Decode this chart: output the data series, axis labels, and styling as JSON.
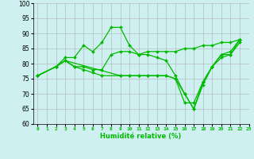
{
  "xlabel": "Humidité relative (%)",
  "background_color": "#cff0f0",
  "grid_color": "#b0b0b0",
  "line_color": "#00bb00",
  "xlim": [
    -0.5,
    23
  ],
  "ylim": [
    60,
    100
  ],
  "yticks": [
    60,
    65,
    70,
    75,
    80,
    85,
    90,
    95,
    100
  ],
  "xticks": [
    0,
    1,
    2,
    3,
    4,
    5,
    6,
    7,
    8,
    9,
    10,
    11,
    12,
    13,
    14,
    15,
    16,
    17,
    18,
    19,
    20,
    21,
    22,
    23
  ],
  "series": [
    {
      "x": [
        0,
        2,
        3,
        4,
        5,
        6,
        7,
        8,
        9,
        10,
        11,
        12,
        13,
        14,
        15,
        16,
        17,
        18,
        19,
        20,
        21,
        22
      ],
      "y": [
        76,
        79,
        82,
        82,
        86,
        84,
        87,
        92,
        92,
        86,
        83,
        83,
        82,
        81,
        76,
        70,
        65,
        74,
        79,
        83,
        84,
        88
      ]
    },
    {
      "x": [
        0,
        2,
        3,
        4,
        5,
        6,
        7,
        8,
        9,
        10,
        11,
        12,
        13,
        14,
        15,
        16,
        17,
        18,
        19,
        20,
        21,
        22
      ],
      "y": [
        76,
        79,
        81,
        79,
        79,
        78,
        78,
        83,
        84,
        84,
        83,
        84,
        84,
        84,
        84,
        85,
        85,
        86,
        86,
        87,
        87,
        88
      ]
    },
    {
      "x": [
        0,
        2,
        3,
        4,
        5,
        6,
        7,
        9,
        10,
        11,
        12,
        13,
        14,
        15,
        16,
        17,
        18,
        19,
        20,
        21,
        22
      ],
      "y": [
        76,
        79,
        81,
        79,
        78,
        77,
        76,
        76,
        76,
        76,
        76,
        76,
        76,
        75,
        67,
        67,
        74,
        79,
        83,
        83,
        87
      ]
    },
    {
      "x": [
        0,
        2,
        3,
        9,
        10,
        11,
        12,
        13,
        14,
        15,
        16,
        17,
        18,
        19,
        20,
        21,
        22
      ],
      "y": [
        76,
        79,
        81,
        76,
        76,
        76,
        76,
        76,
        76,
        75,
        70,
        65,
        73,
        79,
        82,
        83,
        88
      ]
    }
  ]
}
